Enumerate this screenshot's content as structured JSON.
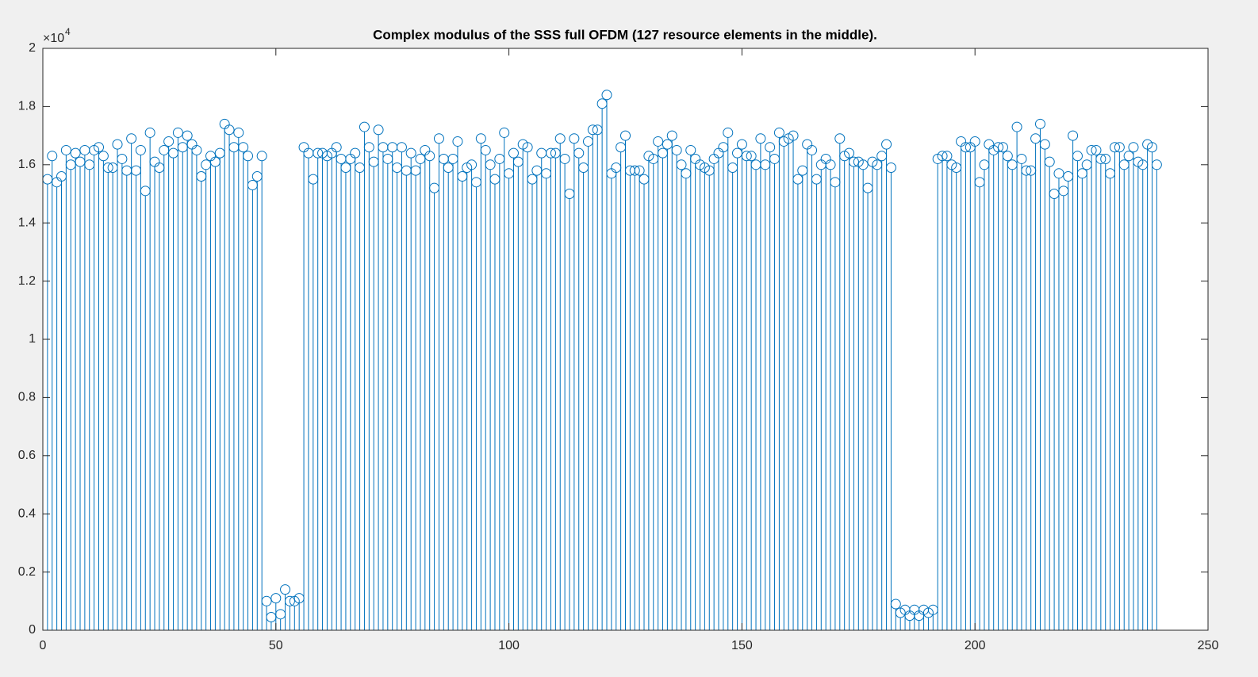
{
  "chart_data": {
    "type": "stem",
    "title": "Complex modulus of the SSS full OFDM (127 resource elements in the middle).",
    "y_exponent": {
      "base": "×10",
      "power": "4"
    },
    "color": "#0072bd",
    "xlim": [
      0,
      250
    ],
    "xticks": [
      0,
      50,
      100,
      150,
      200,
      250
    ],
    "ylim": [
      0,
      2
    ],
    "yticks": [
      0,
      0.2,
      0.4,
      0.6,
      0.8,
      1,
      1.2,
      1.4,
      1.6,
      1.8,
      2
    ],
    "grid": false,
    "x": [
      1,
      2,
      3,
      4,
      5,
      6,
      7,
      8,
      9,
      10,
      11,
      12,
      13,
      14,
      15,
      16,
      17,
      18,
      19,
      20,
      21,
      22,
      23,
      24,
      25,
      26,
      27,
      28,
      29,
      30,
      31,
      32,
      33,
      34,
      35,
      36,
      37,
      38,
      39,
      40,
      41,
      42,
      43,
      44,
      45,
      46,
      47,
      48,
      49,
      50,
      51,
      52,
      53,
      54,
      55,
      56,
      57,
      58,
      59,
      60,
      61,
      62,
      63,
      64,
      65,
      66,
      67,
      68,
      69,
      70,
      71,
      72,
      73,
      74,
      75,
      76,
      77,
      78,
      79,
      80,
      81,
      82,
      83,
      84,
      85,
      86,
      87,
      88,
      89,
      90,
      91,
      92,
      93,
      94,
      95,
      96,
      97,
      98,
      99,
      100,
      101,
      102,
      103,
      104,
      105,
      106,
      107,
      108,
      109,
      110,
      111,
      112,
      113,
      114,
      115,
      116,
      117,
      118,
      119,
      120,
      121,
      122,
      123,
      124,
      125,
      126,
      127,
      128,
      129,
      130,
      131,
      132,
      133,
      134,
      135,
      136,
      137,
      138,
      139,
      140,
      141,
      142,
      143,
      144,
      145,
      146,
      147,
      148,
      149,
      150,
      151,
      152,
      153,
      154,
      155,
      156,
      157,
      158,
      159,
      160,
      161,
      162,
      163,
      164,
      165,
      166,
      167,
      168,
      169,
      170,
      171,
      172,
      173,
      174,
      175,
      176,
      177,
      178,
      179,
      180,
      181,
      182,
      183,
      184,
      185,
      186,
      187,
      188,
      189,
      190,
      191,
      192,
      193,
      194,
      195,
      196,
      197,
      198,
      199,
      200,
      201,
      202,
      203,
      204,
      205,
      206,
      207,
      208,
      209,
      210,
      211,
      212,
      213,
      214,
      215,
      216,
      217,
      218,
      219,
      220,
      221,
      222,
      223,
      224,
      225,
      226,
      227,
      228,
      229,
      230,
      231,
      232,
      233,
      234,
      235,
      236,
      237,
      238,
      239
    ],
    "values": [
      1.55,
      1.63,
      1.54,
      1.56,
      1.65,
      1.6,
      1.64,
      1.61,
      1.65,
      1.6,
      1.65,
      1.66,
      1.63,
      1.59,
      1.59,
      1.67,
      1.62,
      1.58,
      1.69,
      1.58,
      1.65,
      1.51,
      1.71,
      1.61,
      1.59,
      1.65,
      1.68,
      1.64,
      1.71,
      1.66,
      1.7,
      1.67,
      1.65,
      1.56,
      1.6,
      1.63,
      1.61,
      1.64,
      1.74,
      1.72,
      1.66,
      1.71,
      1.66,
      1.63,
      1.53,
      1.56,
      1.63,
      0.1,
      0.045,
      0.11,
      0.055,
      0.14,
      0.1,
      0.1,
      0.11,
      1.66,
      1.64,
      1.55,
      1.64,
      1.64,
      1.63,
      1.64,
      1.66,
      1.62,
      1.59,
      1.62,
      1.64,
      1.59,
      1.73,
      1.66,
      1.61,
      1.72,
      1.66,
      1.62,
      1.66,
      1.59,
      1.66,
      1.58,
      1.64,
      1.58,
      1.62,
      1.65,
      1.63,
      1.52,
      1.69,
      1.62,
      1.59,
      1.62,
      1.68,
      1.56,
      1.59,
      1.6,
      1.54,
      1.69,
      1.65,
      1.6,
      1.55,
      1.62,
      1.71,
      1.57,
      1.64,
      1.61,
      1.67,
      1.66,
      1.55,
      1.58,
      1.64,
      1.57,
      1.64,
      1.64,
      1.69,
      1.62,
      1.5,
      1.69,
      1.64,
      1.59,
      1.68,
      1.72,
      1.72,
      1.81,
      1.84,
      1.57,
      1.59,
      1.66,
      1.7,
      1.58,
      1.58,
      1.58,
      1.55,
      1.63,
      1.62,
      1.68,
      1.64,
      1.67,
      1.7,
      1.65,
      1.6,
      1.57,
      1.65,
      1.62,
      1.6,
      1.59,
      1.58,
      1.62,
      1.64,
      1.66,
      1.71,
      1.59,
      1.64,
      1.67,
      1.63,
      1.63,
      1.6,
      1.69,
      1.6,
      1.66,
      1.62,
      1.71,
      1.68,
      1.69,
      1.7,
      1.55,
      1.58,
      1.67,
      1.65,
      1.55,
      1.6,
      1.62,
      1.6,
      1.54,
      1.69,
      1.63,
      1.64,
      1.61,
      1.61,
      1.6,
      1.52,
      1.61,
      1.6,
      1.63,
      1.67,
      1.59,
      0.09,
      0.06,
      0.07,
      0.05,
      0.07,
      0.05,
      0.07,
      0.06,
      0.07,
      1.62,
      1.63,
      1.63,
      1.6,
      1.59,
      1.68,
      1.66,
      1.66,
      1.68,
      1.54,
      1.6,
      1.67,
      1.65,
      1.66,
      1.66,
      1.63,
      1.6,
      1.73,
      1.62,
      1.58,
      1.58,
      1.69,
      1.74,
      1.67,
      1.61,
      1.5,
      1.57,
      1.51,
      1.56,
      1.7,
      1.63,
      1.57,
      1.6,
      1.65,
      1.65,
      1.62,
      1.62,
      1.57,
      1.66,
      1.66,
      1.6,
      1.63,
      1.66,
      1.61,
      1.6,
      1.67,
      1.66,
      1.6
    ]
  }
}
